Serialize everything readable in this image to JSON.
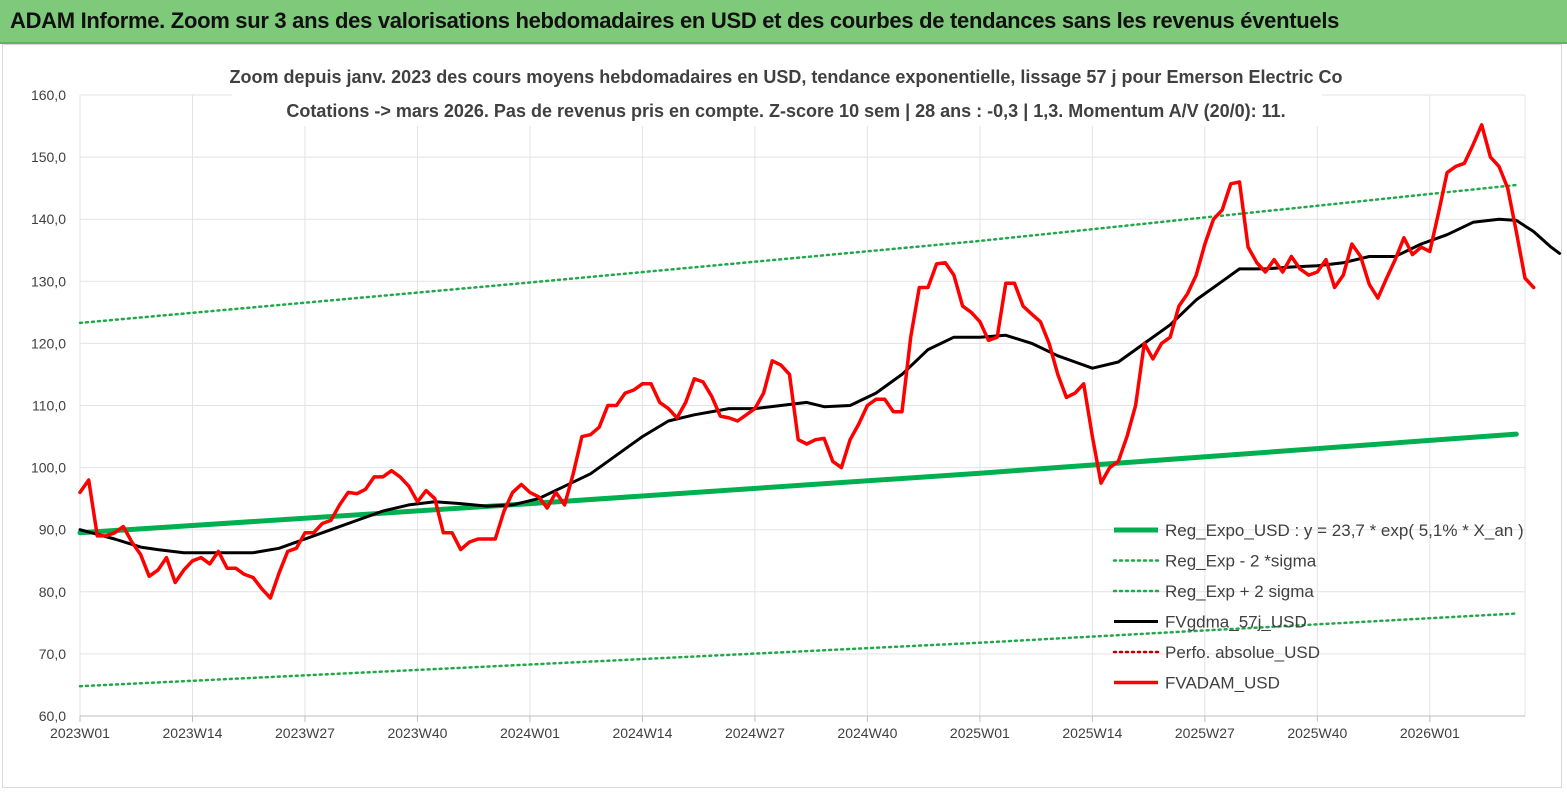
{
  "banner": {
    "title": "ADAM Informe. Zoom sur 3 ans des valorisations hebdomadaires en USD et des courbes de tendances sans les revenus éventuels"
  },
  "colors": {
    "banner_bg": "#7ec97a",
    "reg": "#00b050",
    "band": "#21a84a",
    "fvgdma": "#000000",
    "fvadam": "#ff0000",
    "perfo": "#c00000"
  },
  "chart_data": {
    "type": "line",
    "title_lines": [
      "Zoom depuis janv. 2023 des cours moyens hebdomadaires en USD, tendance exponentielle, lissage 57 j pour Emerson Electric Co",
      "Cotations -> mars 2026. Pas de revenus pris en compte. Z-score 10 sem  | 28 ans : -0,3 | 1,3. Momentum A/V (20/0): 11."
    ],
    "x_tick_labels": [
      "2023W01",
      "2023W14",
      "2023W27",
      "2023W40",
      "2024W01",
      "2024W14",
      "2024W27",
      "2024W40",
      "2025W01",
      "2025W14",
      "2025W27",
      "2025W40",
      "2026W01"
    ],
    "y_ticks": [
      "60,0",
      "70,0",
      "80,0",
      "90,0",
      "100,0",
      "110,0",
      "120,0",
      "130,0",
      "140,0",
      "150,0",
      "160,0"
    ],
    "ylim": [
      60,
      160
    ],
    "x_index_range": [
      0,
      167
    ],
    "legend": [
      {
        "key": "reg",
        "label": "Reg_Expo_USD : y = 23,7 * exp( 5,1% *  X_an )",
        "style": "thick"
      },
      {
        "key": "minus",
        "label": "Reg_Exp - 2 *sigma",
        "style": "dotted"
      },
      {
        "key": "plus",
        "label": "Reg_Exp + 2 sigma",
        "style": "dotted"
      },
      {
        "key": "fvgdma",
        "label": "FVgdma_57j_USD",
        "style": "solid"
      },
      {
        "key": "perfo",
        "label": "Perfo. absolue_USD",
        "style": "dotted"
      },
      {
        "key": "fvadam",
        "label": "FVADAM_USD",
        "style": "solid"
      }
    ],
    "series": [
      {
        "key": "reg",
        "name": "Reg_Expo_USD",
        "points": [
          [
            0,
            89.5
          ],
          [
            52,
            94.2
          ],
          [
            104,
            99.1
          ],
          [
            166,
            105.4
          ]
        ]
      },
      {
        "key": "minus",
        "name": "Reg_Exp - 2 *sigma",
        "points": [
          [
            0,
            64.8
          ],
          [
            52,
            68.3
          ],
          [
            104,
            71.8
          ],
          [
            166,
            76.5
          ]
        ]
      },
      {
        "key": "plus",
        "name": "Reg_Exp + 2 sigma",
        "points": [
          [
            0,
            123.3
          ],
          [
            52,
            129.8
          ],
          [
            104,
            136.5
          ],
          [
            166,
            145.5
          ]
        ]
      },
      {
        "key": "fvgdma",
        "name": "FVgdma_57j_USD",
        "points": [
          [
            0,
            90
          ],
          [
            4,
            88.5
          ],
          [
            7,
            87.2
          ],
          [
            9,
            86.8
          ],
          [
            12,
            86.3
          ],
          [
            17,
            86.3
          ],
          [
            20,
            86.3
          ],
          [
            23,
            87
          ],
          [
            26,
            88.5
          ],
          [
            29,
            90
          ],
          [
            32,
            91.5
          ],
          [
            35,
            93
          ],
          [
            38,
            94
          ],
          [
            41,
            94.5
          ],
          [
            44,
            94.2
          ],
          [
            47,
            93.8
          ],
          [
            50,
            94
          ],
          [
            53,
            95
          ],
          [
            56,
            97
          ],
          [
            59,
            99
          ],
          [
            62,
            102
          ],
          [
            65,
            105
          ],
          [
            68,
            107.5
          ],
          [
            71,
            108.5
          ],
          [
            75,
            109.5
          ],
          [
            78,
            109.5
          ],
          [
            81,
            110
          ],
          [
            84,
            110.5
          ],
          [
            86,
            109.8
          ],
          [
            89,
            110
          ],
          [
            92,
            112
          ],
          [
            95,
            115
          ],
          [
            98,
            119
          ],
          [
            101,
            121
          ],
          [
            104,
            121
          ],
          [
            107,
            121.3
          ],
          [
            110,
            120
          ],
          [
            113,
            118
          ],
          [
            115,
            117
          ],
          [
            117,
            116
          ],
          [
            120,
            117
          ],
          [
            123,
            120
          ],
          [
            126,
            123
          ],
          [
            129,
            127
          ],
          [
            132,
            130
          ],
          [
            134,
            132
          ],
          [
            137,
            132
          ],
          [
            140,
            132.3
          ],
          [
            143,
            132.5
          ],
          [
            146,
            133
          ],
          [
            149,
            134
          ],
          [
            152,
            134
          ],
          [
            155,
            136
          ],
          [
            158,
            137.5
          ],
          [
            161,
            139.5
          ],
          [
            164,
            140
          ],
          [
            166,
            139.8
          ],
          [
            168,
            138
          ],
          [
            170,
            135.5
          ],
          [
            171,
            134.5
          ]
        ]
      },
      {
        "key": "fvadam",
        "name": "FVADAM_USD",
        "points": [
          [
            0,
            96
          ],
          [
            1,
            98
          ],
          [
            2,
            89
          ],
          [
            3,
            89
          ],
          [
            4,
            89.5
          ],
          [
            5,
            90.5
          ],
          [
            6,
            88
          ],
          [
            7,
            86
          ],
          [
            8,
            82.5
          ],
          [
            9,
            83.5
          ],
          [
            10,
            85.5
          ],
          [
            11,
            81.5
          ],
          [
            12,
            83.5
          ],
          [
            13,
            85
          ],
          [
            14,
            85.5
          ],
          [
            15,
            84.5
          ],
          [
            16,
            86.5
          ],
          [
            17,
            83.8
          ],
          [
            18,
            83.8
          ],
          [
            19,
            82.8
          ],
          [
            20,
            82.3
          ],
          [
            21,
            80.5
          ],
          [
            22,
            79
          ],
          [
            23,
            83
          ],
          [
            24,
            86.5
          ],
          [
            25,
            87
          ],
          [
            26,
            89.5
          ],
          [
            27,
            89.5
          ],
          [
            28,
            91
          ],
          [
            29,
            91.5
          ],
          [
            30,
            94
          ],
          [
            31,
            96
          ],
          [
            32,
            95.8
          ],
          [
            33,
            96.5
          ],
          [
            34,
            98.5
          ],
          [
            35,
            98.5
          ],
          [
            36,
            99.5
          ],
          [
            37,
            98.5
          ],
          [
            38,
            97
          ],
          [
            39,
            94.5
          ],
          [
            40,
            96.3
          ],
          [
            41,
            95
          ],
          [
            42,
            89.5
          ],
          [
            43,
            89.5
          ],
          [
            44,
            86.8
          ],
          [
            45,
            88
          ],
          [
            46,
            88.5
          ],
          [
            47,
            88.5
          ],
          [
            48,
            88.5
          ],
          [
            49,
            93
          ],
          [
            50,
            96
          ],
          [
            51,
            97.3
          ],
          [
            52,
            96
          ],
          [
            53,
            95.3
          ],
          [
            54,
            93.5
          ],
          [
            55,
            96
          ],
          [
            56,
            94
          ],
          [
            57,
            99
          ],
          [
            58,
            105
          ],
          [
            59,
            105.3
          ],
          [
            60,
            106.5
          ],
          [
            61,
            110
          ],
          [
            62,
            110
          ],
          [
            63,
            112
          ],
          [
            64,
            112.5
          ],
          [
            65,
            113.5
          ],
          [
            66,
            113.5
          ],
          [
            67,
            110.5
          ],
          [
            68,
            109.5
          ],
          [
            69,
            108
          ],
          [
            70,
            110.5
          ],
          [
            71,
            114.3
          ],
          [
            72,
            113.8
          ],
          [
            73,
            111.5
          ],
          [
            74,
            108.3
          ],
          [
            75,
            108
          ],
          [
            76,
            107.5
          ],
          [
            77,
            108.5
          ],
          [
            78,
            109.5
          ],
          [
            79,
            112
          ],
          [
            80,
            117.2
          ],
          [
            81,
            116.5
          ],
          [
            82,
            115
          ],
          [
            83,
            104.5
          ],
          [
            84,
            103.8
          ],
          [
            85,
            104.5
          ],
          [
            86,
            104.7
          ],
          [
            87,
            101
          ],
          [
            88,
            100
          ],
          [
            89,
            104.5
          ],
          [
            90,
            107
          ],
          [
            91,
            110
          ],
          [
            92,
            111
          ],
          [
            93,
            111
          ],
          [
            94,
            109
          ],
          [
            95,
            109
          ],
          [
            96,
            121
          ],
          [
            97,
            129
          ],
          [
            98,
            129
          ],
          [
            99,
            132.8
          ],
          [
            100,
            133
          ],
          [
            101,
            131
          ],
          [
            102,
            126
          ],
          [
            103,
            125
          ],
          [
            104,
            123.5
          ],
          [
            105,
            120.5
          ],
          [
            106,
            121
          ],
          [
            107,
            129.7
          ],
          [
            108,
            129.7
          ],
          [
            109,
            126
          ],
          [
            110,
            124.7
          ],
          [
            111,
            123.5
          ],
          [
            112,
            120
          ],
          [
            113,
            115
          ],
          [
            114,
            111.3
          ],
          [
            115,
            112
          ],
          [
            116,
            113.5
          ],
          [
            117,
            105
          ],
          [
            118,
            97.5
          ],
          [
            119,
            100
          ],
          [
            120,
            101
          ],
          [
            121,
            105
          ],
          [
            122,
            110
          ],
          [
            123,
            120
          ],
          [
            124,
            117.5
          ],
          [
            125,
            120
          ],
          [
            126,
            121
          ],
          [
            127,
            126
          ],
          [
            128,
            128
          ],
          [
            129,
            131
          ],
          [
            130,
            136
          ],
          [
            131,
            140
          ],
          [
            132,
            141.5
          ],
          [
            133,
            145.7
          ],
          [
            134,
            146
          ],
          [
            135,
            135.5
          ],
          [
            136,
            133
          ],
          [
            137,
            131.5
          ],
          [
            138,
            133.5
          ],
          [
            139,
            131.5
          ],
          [
            140,
            134
          ],
          [
            141,
            132
          ],
          [
            142,
            131
          ],
          [
            143,
            131.5
          ],
          [
            144,
            133.5
          ],
          [
            145,
            129
          ],
          [
            146,
            131
          ],
          [
            147,
            136
          ],
          [
            148,
            134
          ],
          [
            149,
            129.5
          ],
          [
            150,
            127.3
          ],
          [
            151,
            130.5
          ],
          [
            152,
            133.5
          ],
          [
            153,
            137
          ],
          [
            154,
            134.3
          ],
          [
            155,
            135.5
          ],
          [
            156,
            134.8
          ],
          [
            157,
            141
          ],
          [
            158,
            147.5
          ],
          [
            159,
            148.5
          ],
          [
            160,
            149
          ],
          [
            161,
            152
          ],
          [
            162,
            155.2
          ],
          [
            163,
            150
          ],
          [
            164,
            148.5
          ],
          [
            165,
            145
          ],
          [
            166,
            138
          ],
          [
            167,
            130.5
          ],
          [
            168,
            129
          ]
        ]
      }
    ]
  }
}
